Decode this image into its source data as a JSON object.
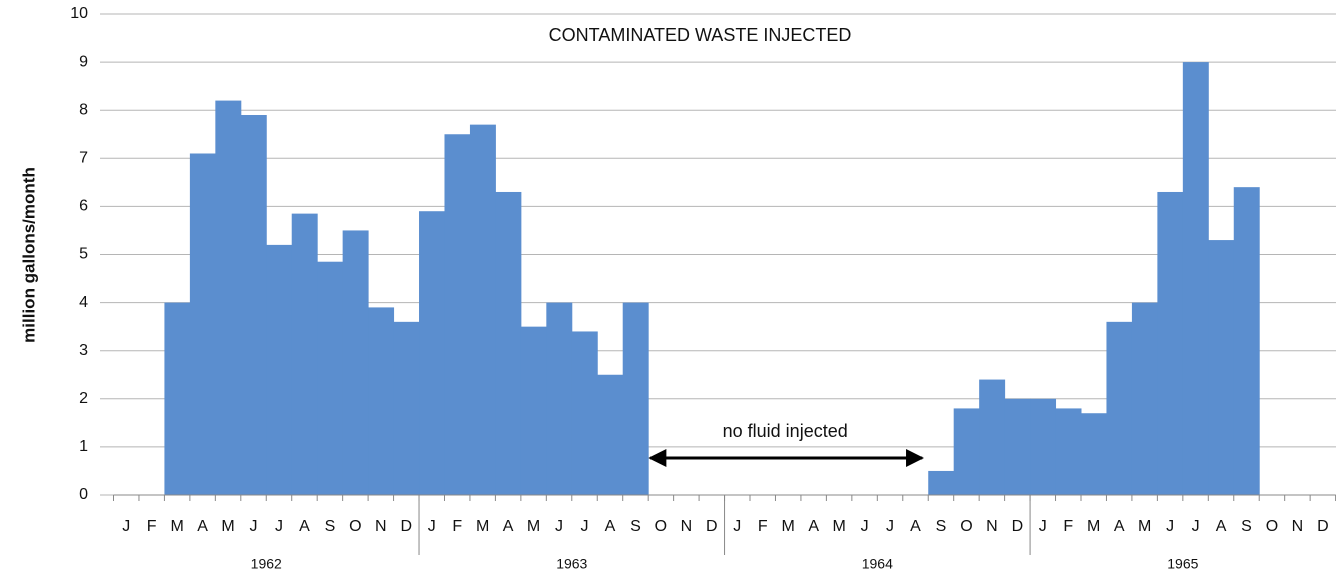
{
  "chart_data": {
    "type": "bar",
    "title": "CONTAMINATED WASTE INJECTED",
    "y_label": "million gallons/month",
    "annotation": "no fluid injected",
    "categories": [
      "J",
      "F",
      "M",
      "A",
      "M",
      "J",
      "J",
      "A",
      "S",
      "O",
      "N",
      "D",
      "J",
      "F",
      "M",
      "A",
      "M",
      "J",
      "J",
      "A",
      "S",
      "O",
      "N",
      "D",
      "J",
      "F",
      "M",
      "A",
      "M",
      "J",
      "J",
      "A",
      "S",
      "O",
      "N",
      "D",
      "J",
      "F",
      "M",
      "A",
      "M",
      "J",
      "J",
      "A",
      "S",
      "O",
      "N",
      "D"
    ],
    "groups": [
      "1962",
      "1963",
      "1964",
      "1965"
    ],
    "values": [
      null,
      null,
      4.0,
      7.1,
      8.2,
      7.9,
      5.2,
      5.85,
      4.85,
      5.5,
      3.9,
      3.6,
      5.9,
      7.5,
      7.7,
      6.3,
      3.5,
      4.0,
      3.4,
      2.5,
      4.0,
      null,
      null,
      null,
      null,
      null,
      null,
      null,
      null,
      null,
      null,
      null,
      0.5,
      1.8,
      2.4,
      2.0,
      2.0,
      1.8,
      1.7,
      3.6,
      4.0,
      6.3,
      9.0,
      5.3,
      6.4,
      null,
      null,
      null
    ],
    "color": "#5b8ecf",
    "ylim": [
      0,
      10
    ],
    "yticks": [
      0,
      1,
      2,
      3,
      4,
      5,
      6,
      7,
      8,
      9,
      10
    ],
    "grid": true
  }
}
